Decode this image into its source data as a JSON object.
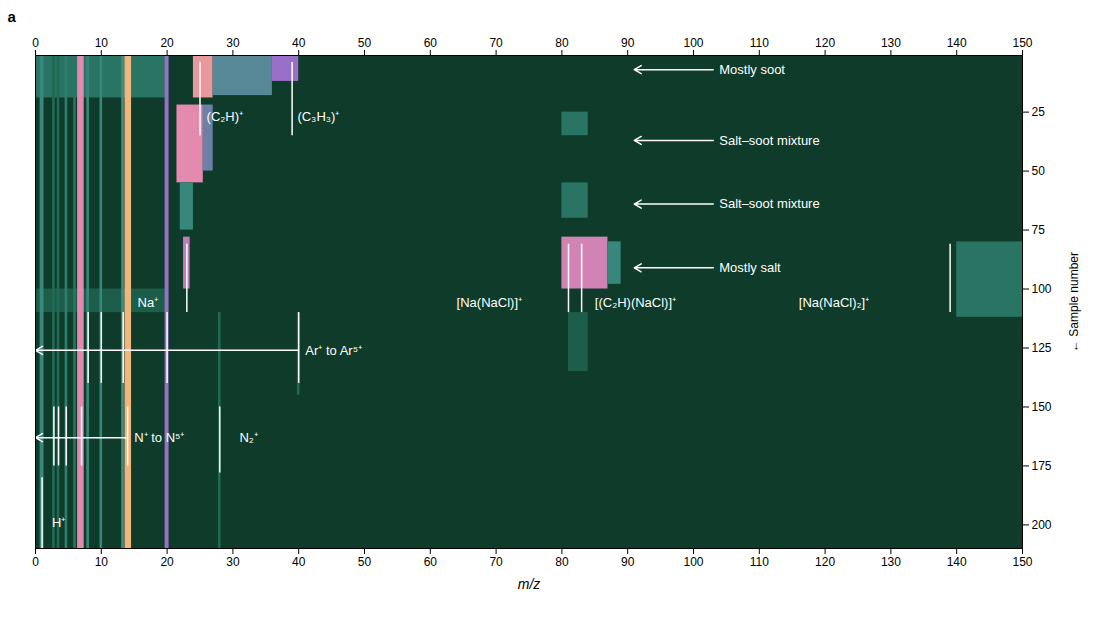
{
  "chart_data": {
    "type": "heatmap",
    "panel_label": "a",
    "x_label": "m/z",
    "y_label": "← Sample number",
    "xlim": [
      0,
      150
    ],
    "xticks": [
      0,
      10,
      20,
      30,
      40,
      50,
      60,
      70,
      80,
      90,
      100,
      110,
      120,
      130,
      140,
      150
    ],
    "ylim": [
      1,
      210
    ],
    "yticks": [
      25,
      50,
      75,
      100,
      125,
      150,
      175,
      200
    ],
    "zlim": [
      0,
      1
    ],
    "cells": [
      {
        "mz": [
          0,
          20
        ],
        "sample": [
          1,
          19
        ],
        "z": 0.25
      },
      {
        "mz": [
          0,
          20
        ],
        "sample": [
          100,
          110
        ],
        "z": 0.15
      },
      {
        "mz": [
          0.7,
          1.3
        ],
        "sample": [
          1,
          210
        ],
        "z": 0.35
      },
      {
        "mz": [
          2.6,
          3.0
        ],
        "sample": [
          1,
          210
        ],
        "z": 0.2
      },
      {
        "mz": [
          3.3,
          3.7
        ],
        "sample": [
          1,
          210
        ],
        "z": 0.2
      },
      {
        "mz": [
          4.5,
          4.9
        ],
        "sample": [
          1,
          210
        ],
        "z": 0.3
      },
      {
        "mz": [
          5.8,
          6.2
        ],
        "sample": [
          1,
          210
        ],
        "z": 0.25
      },
      {
        "mz": [
          6.4,
          7.4
        ],
        "sample": [
          1,
          210
        ],
        "z": 0.8
      },
      {
        "mz": [
          7.8,
          8.2
        ],
        "sample": [
          1,
          210
        ],
        "z": 0.35
      },
      {
        "mz": [
          9.8,
          10.2
        ],
        "sample": [
          1,
          210
        ],
        "z": 0.35
      },
      {
        "mz": [
          13.1,
          13.5
        ],
        "sample": [
          1,
          210
        ],
        "z": 0.4
      },
      {
        "mz": [
          13.6,
          14.6
        ],
        "sample": [
          1,
          210
        ],
        "z": 0.95
      },
      {
        "mz": [
          19.7,
          20.3
        ],
        "sample": [
          1,
          210
        ],
        "z": 0.6
      },
      {
        "mz": [
          27.8,
          28.2
        ],
        "sample": [
          110,
          210
        ],
        "z": 0.2
      },
      {
        "mz": [
          39.8,
          40.2
        ],
        "sample": [
          110,
          145
        ],
        "z": 0.2
      },
      {
        "mz": [
          24,
          27
        ],
        "sample": [
          1,
          19
        ],
        "z": 0.85
      },
      {
        "mz": [
          27,
          36
        ],
        "sample": [
          1,
          18
        ],
        "z": 0.45
      },
      {
        "mz": [
          36,
          40
        ],
        "sample": [
          1,
          12
        ],
        "z": 0.6
      },
      {
        "mz": [
          21.5,
          25.5
        ],
        "sample": [
          22,
          55
        ],
        "z": 0.8
      },
      {
        "mz": [
          25.5,
          27
        ],
        "sample": [
          22,
          50
        ],
        "z": 0.5
      },
      {
        "mz": [
          22,
          24
        ],
        "sample": [
          55,
          75
        ],
        "z": 0.35
      },
      {
        "mz": [
          22.5,
          23.5
        ],
        "sample": [
          78,
          100
        ],
        "z": 0.7
      },
      {
        "mz": [
          80,
          87
        ],
        "sample": [
          78,
          100
        ],
        "z": 0.75
      },
      {
        "mz": [
          87,
          89
        ],
        "sample": [
          80,
          98
        ],
        "z": 0.35
      },
      {
        "mz": [
          140,
          150
        ],
        "sample": [
          80,
          112
        ],
        "z": 0.25
      },
      {
        "mz": [
          80,
          84
        ],
        "sample": [
          25,
          35
        ],
        "z": 0.25
      },
      {
        "mz": [
          80,
          84
        ],
        "sample": [
          55,
          70
        ],
        "z": 0.25
      },
      {
        "mz": [
          81,
          84
        ],
        "sample": [
          110,
          135
        ],
        "z": 0.15
      }
    ],
    "peak_labels": [
      {
        "text": "(C₂H)⁺",
        "lines": [
          25
        ],
        "sample": [
          4,
          35
        ],
        "text_mz": 26,
        "text_sample": 27
      },
      {
        "text": "(C₃H₃)⁺",
        "lines": [
          39
        ],
        "sample": [
          4,
          35
        ],
        "text_mz": 39.8,
        "text_sample": 27
      },
      {
        "text": "Na⁺",
        "lines": [
          23
        ],
        "sample": [
          81,
          110
        ],
        "text_mz": 15.5,
        "text_sample": 106
      },
      {
        "text": "[Na(NaCl)]⁺",
        "lines": [
          81
        ],
        "sample": [
          81,
          110
        ],
        "text_mz": 64,
        "text_sample": 106
      },
      {
        "text": "[(C₂H)(NaCl)]⁺",
        "lines": [
          83
        ],
        "sample": [
          81,
          110
        ],
        "text_mz": 85,
        "text_sample": 106
      },
      {
        "text": "[Na(NaCl)₂]⁺",
        "lines": [
          139
        ],
        "sample": [
          81,
          110
        ],
        "text_mz": 116,
        "text_sample": 106
      },
      {
        "text": "Ar⁺ to Ar⁵⁺",
        "lines": [
          8,
          10,
          13.33,
          20,
          40
        ],
        "sample": [
          110,
          140
        ],
        "arrow_mz": [
          40,
          0
        ],
        "arrow_sample": 126,
        "text_mz": 41,
        "text_sample": 126
      },
      {
        "text": "N⁺ to N⁵⁺",
        "lines": [
          2.8,
          3.5,
          4.67,
          7,
          14
        ],
        "sample": [
          150,
          175
        ],
        "arrow_mz": [
          14,
          0
        ],
        "arrow_sample": 163,
        "text_mz": 15,
        "text_sample": 163
      },
      {
        "text": "N₂⁺",
        "lines": [
          28
        ],
        "sample": [
          150,
          178
        ],
        "text_mz": 31,
        "text_sample": 163
      },
      {
        "text": "H⁺",
        "lines": [
          1
        ],
        "sample": [
          180,
          210
        ],
        "text_mz": 2.5,
        "text_sample": 199
      }
    ],
    "sample_notes": [
      {
        "text": "Mostly soot",
        "sample": 7,
        "arrow_mz": [
          103,
          91
        ]
      },
      {
        "text": "Salt–soot mixture",
        "sample": 37,
        "arrow_mz": [
          103,
          91
        ]
      },
      {
        "text": "Salt–soot mixture",
        "sample": 64,
        "arrow_mz": [
          103,
          91
        ]
      },
      {
        "text": "Mostly salt",
        "sample": 91,
        "arrow_mz": [
          103,
          91
        ]
      }
    ]
  }
}
